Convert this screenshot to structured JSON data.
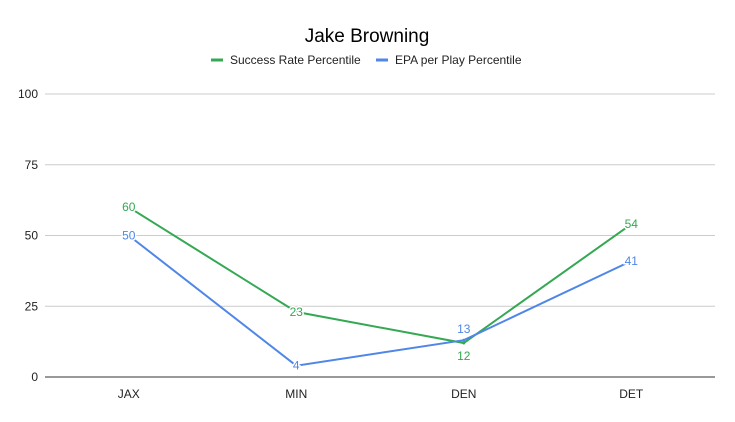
{
  "chart_data": {
    "type": "line",
    "title": "Jake Browning",
    "xlabel": "",
    "ylabel": "",
    "categories": [
      "JAX",
      "MIN",
      "DEN",
      "DET"
    ],
    "ylim": [
      0,
      100
    ],
    "yticks": [
      0,
      25,
      50,
      75,
      100
    ],
    "grid": true,
    "legend_position": "top",
    "series": [
      {
        "name": "Success Rate Percentile",
        "color": "#34a853",
        "values": [
          60,
          23,
          12,
          54
        ]
      },
      {
        "name": "EPA per Play Percentile",
        "color": "#4f86e8",
        "values": [
          50,
          4,
          13,
          41
        ]
      }
    ]
  }
}
